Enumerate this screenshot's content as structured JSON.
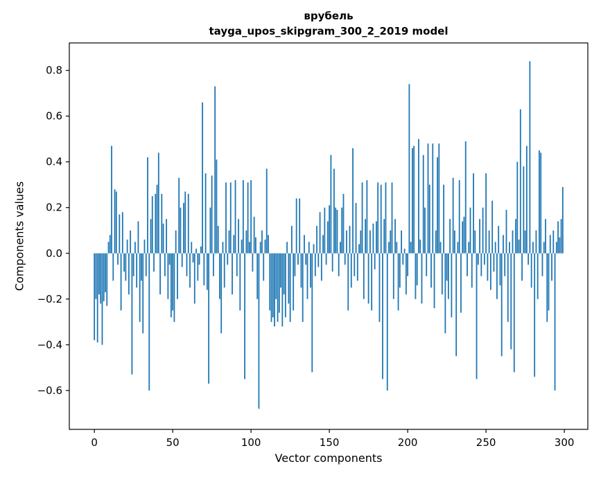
{
  "figure": {
    "background": "#ffffff"
  },
  "chart_data": {
    "type": "bar",
    "title": "врубель",
    "subtitle": "tayga_upos_skipgram_300_2_2019 model",
    "xlabel": "Vector components",
    "ylabel": "Components values",
    "bar_color": "#1f77b4",
    "spine_color": "#000000",
    "tick_label_color": "#000000",
    "grid": false,
    "legend": null,
    "n_components": 300,
    "xlim": [
      -16,
      315
    ],
    "ylim": [
      -0.77,
      0.92
    ],
    "xticks": [
      0,
      50,
      100,
      150,
      200,
      250,
      300
    ],
    "yticks": [
      -0.6,
      -0.4,
      -0.2,
      0.0,
      0.2,
      0.4,
      0.6,
      0.8
    ],
    "values": [
      -0.38,
      -0.2,
      -0.39,
      -0.18,
      -0.22,
      -0.4,
      -0.21,
      -0.17,
      -0.23,
      0.05,
      0.08,
      0.47,
      -0.12,
      0.28,
      0.27,
      -0.05,
      0.17,
      -0.25,
      0.18,
      -0.08,
      -0.12,
      0.06,
      -0.18,
      0.1,
      -0.53,
      -0.1,
      0.05,
      -0.15,
      0.14,
      -0.3,
      -0.12,
      -0.35,
      0.06,
      -0.1,
      0.42,
      -0.6,
      0.15,
      0.25,
      -0.08,
      0.26,
      0.3,
      0.44,
      -0.18,
      0.26,
      0.13,
      -0.1,
      0.15,
      -0.2,
      -0.05,
      -0.28,
      -0.25,
      -0.3,
      0.1,
      -0.2,
      0.33,
      0.2,
      -0.06,
      0.22,
      0.27,
      -0.1,
      0.26,
      -0.15,
      0.05,
      -0.04,
      -0.22,
      0.02,
      -0.12,
      -0.05,
      0.03,
      0.66,
      -0.14,
      0.35,
      -0.16,
      -0.57,
      0.2,
      0.34,
      -0.1,
      0.73,
      0.41,
      0.12,
      -0.2,
      -0.35,
      0.05,
      -0.15,
      0.31,
      -0.05,
      0.1,
      0.31,
      -0.18,
      0.08,
      0.32,
      -0.1,
      0.15,
      -0.25,
      0.06,
      0.32,
      -0.55,
      0.1,
      0.31,
      0.05,
      0.32,
      -0.08,
      0.16,
      0.07,
      -0.2,
      -0.68,
      0.05,
      0.1,
      -0.12,
      0.06,
      0.37,
      0.08,
      -0.25,
      -0.3,
      -0.28,
      -0.32,
      -0.2,
      -0.3,
      -0.26,
      -0.15,
      -0.32,
      -0.18,
      -0.28,
      0.05,
      -0.22,
      -0.3,
      0.12,
      -0.25,
      -0.1,
      0.24,
      -0.05,
      0.24,
      -0.15,
      -0.3,
      0.08,
      -0.05,
      -0.2,
      0.05,
      -0.15,
      -0.52,
      0.04,
      -0.1,
      0.12,
      -0.06,
      0.18,
      -0.12,
      0.08,
      0.2,
      -0.05,
      0.14,
      0.21,
      0.43,
      -0.08,
      0.37,
      0.2,
      0.19,
      -0.1,
      0.05,
      0.2,
      0.26,
      -0.05,
      0.1,
      -0.25,
      0.12,
      -0.15,
      0.46,
      -0.1,
      0.22,
      -0.12,
      0.04,
      0.1,
      0.31,
      -0.2,
      0.15,
      0.32,
      -0.22,
      0.1,
      -0.25,
      0.13,
      -0.07,
      0.14,
      0.31,
      -0.3,
      0.3,
      -0.55,
      0.15,
      0.31,
      -0.6,
      0.05,
      0.1,
      0.31,
      -0.2,
      0.15,
      0.05,
      -0.25,
      -0.15,
      0.1,
      -0.05,
      0.02,
      -0.18,
      -0.1,
      0.74,
      0.05,
      0.46,
      0.47,
      -0.2,
      -0.14,
      0.5,
      0.06,
      -0.22,
      0.43,
      0.2,
      -0.1,
      0.48,
      0.3,
      -0.15,
      0.48,
      -0.24,
      0.1,
      0.42,
      0.48,
      0.05,
      -0.18,
      0.3,
      -0.35,
      -0.12,
      -0.2,
      0.15,
      -0.28,
      0.33,
      0.1,
      -0.45,
      0.05,
      0.32,
      -0.26,
      0.14,
      0.16,
      0.49,
      -0.1,
      0.05,
      0.2,
      -0.15,
      0.35,
      0.1,
      -0.55,
      -0.05,
      0.15,
      -0.1,
      0.2,
      -0.05,
      0.35,
      -0.12,
      0.1,
      -0.16,
      0.23,
      -0.08,
      0.05,
      -0.2,
      0.12,
      -0.14,
      -0.45,
      0.08,
      -0.1,
      0.19,
      -0.3,
      0.05,
      -0.42,
      0.1,
      -0.52,
      0.15,
      0.4,
      0.06,
      0.63,
      -0.12,
      0.38,
      0.1,
      0.47,
      -0.05,
      0.84,
      -0.15,
      0.05,
      -0.54,
      0.1,
      -0.2,
      0.45,
      0.44,
      -0.1,
      0.05,
      0.15,
      -0.3,
      -0.25,
      0.08,
      -0.12,
      0.1,
      -0.6,
      0.05,
      0.14,
      0.07,
      0.15,
      0.29
    ]
  }
}
